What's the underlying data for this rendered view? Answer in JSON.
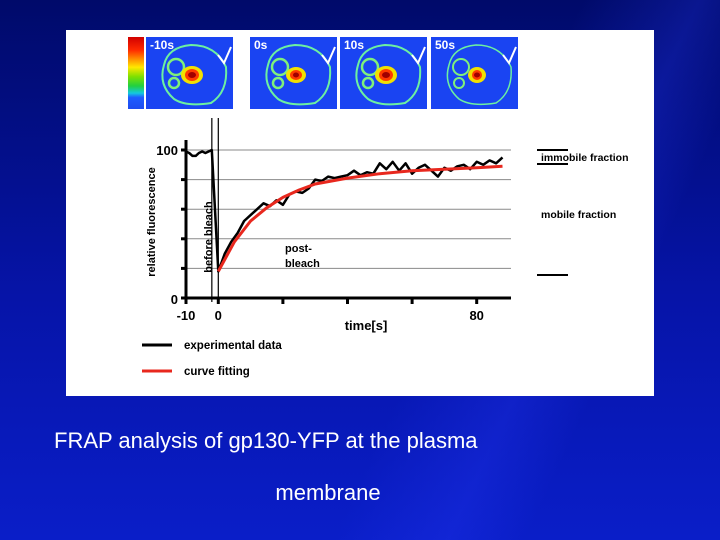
{
  "slide": {
    "caption_line1": "FRAP analysis of gp130-YFP at the plasma",
    "caption_line2": "membrane",
    "background_color": "#0614a8",
    "panel_color": "#ffffff"
  },
  "micrographs": [
    {
      "label": "-10s"
    },
    {
      "label": "0s"
    },
    {
      "label": "10s"
    },
    {
      "label": "50s"
    }
  ],
  "colorbar": {
    "colors": [
      "#d10000",
      "#ff8a00",
      "#ffe800",
      "#22d040",
      "#14c8e0",
      "#1e4cf0"
    ]
  },
  "chart_data": {
    "type": "line",
    "title": "",
    "xlabel": "time[s]",
    "ylabel": "relative fluorescence",
    "xlim": [
      -10,
      90
    ],
    "ylim": [
      0,
      100
    ],
    "x_tick_labels": [
      "-10",
      "0",
      "80"
    ],
    "x_ticks": [
      -10,
      0,
      20,
      40,
      60,
      80
    ],
    "y_tick_labels": [
      "0",
      "100"
    ],
    "y_ticks": [
      0,
      20,
      40,
      60,
      80,
      100
    ],
    "grid": "horizontal",
    "legend_position": "bottom-left",
    "annotations": {
      "before_bleach": "before bleach",
      "post_bleach_1": "post-",
      "post_bleach_2": "bleach",
      "immobile_fraction": "immobile fraction",
      "mobile_fraction": "mobile fraction"
    },
    "vertical_markers": [
      -2,
      0
    ],
    "series": [
      {
        "name": "experimental data",
        "color": "#000000",
        "x": [
          -10,
          -9,
          -8,
          -7,
          -6,
          -5,
          -4,
          -3,
          -2,
          0,
          2,
          4,
          6,
          8,
          10,
          12,
          14,
          16,
          18,
          20,
          22,
          24,
          26,
          28,
          30,
          32,
          34,
          36,
          38,
          40,
          42,
          44,
          46,
          48,
          50,
          52,
          54,
          56,
          58,
          60,
          62,
          64,
          66,
          68,
          70,
          72,
          74,
          76,
          78,
          80,
          82,
          84,
          86,
          88
        ],
        "values": [
          99,
          98,
          96,
          96,
          98,
          99,
          98,
          99,
          100,
          18,
          30,
          38,
          44,
          52,
          56,
          60,
          64,
          62,
          66,
          63,
          70,
          72,
          71,
          74,
          80,
          79,
          82,
          81,
          82,
          83,
          86,
          83,
          85,
          84,
          91,
          87,
          92,
          86,
          91,
          84,
          88,
          90,
          86,
          82,
          88,
          86,
          89,
          90,
          87,
          92,
          90,
          93,
          91,
          95
        ]
      },
      {
        "name": "curve fitting",
        "color": "#e8281e",
        "model": "exponential recovery",
        "x": [
          0,
          5,
          10,
          15,
          20,
          25,
          30,
          40,
          50,
          60,
          70,
          80,
          88
        ],
        "values": [
          18,
          38,
          52,
          61,
          68,
          73,
          77,
          81,
          84,
          86,
          87,
          88,
          89
        ]
      }
    ]
  }
}
